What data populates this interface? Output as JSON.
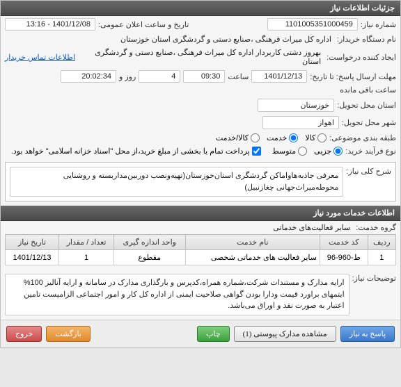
{
  "panels": {
    "details_header": "جزئیات اطلاعات نیاز",
    "services_header": "اطلاعات خدمات مورد نیاز"
  },
  "fields": {
    "need_number_label": "شماره نیاز:",
    "need_number": "1101005351000459",
    "announce_dt_label": "تاریخ و ساعت اعلان عمومی:",
    "announce_dt": "1401/12/08 - 13:16",
    "buyer_org_label": "نام دستگاه خریدار:",
    "buyer_org": "اداره کل میراث فرهنگی ،صنایع دستی و گردشگری استان خوزستان",
    "request_creator_label": "ایجاد کننده درخواست:",
    "request_creator": "بهروز دشتی کاربردار اداره کل میراث فرهنگی ،صنایع دستی و گردشگری استان",
    "buyer_contact_link": "اطلاعات تماس خریدار",
    "deadline_label": "مهلت ارسال پاسخ: تا تاریخ:",
    "deadline_date": "1401/12/13",
    "time_label": "ساعت",
    "deadline_time": "09:30",
    "days": "4",
    "days_label": "روز و",
    "countdown": "20:02:34",
    "remaining_label": "ساعت باقی مانده",
    "province_label": "استان محل تحویل:",
    "province": "خوزستان",
    "city_label": "شهر محل تحویل:",
    "city": "اهواز",
    "subject_cat_label": "طبقه بندی موضوعی:",
    "cat_kala": "کالا",
    "cat_khadamat": "کالا/خدمت",
    "cat_khedmat": "خدمت",
    "purchase_type_label": "نوع فرآیند خرید:",
    "pt_jozi": "جزیی",
    "pt_motavasset": "متوسط",
    "pt_note": "پرداخت تمام یا بخشی از مبلغ خرید،از محل \"اسناد خزانه اسلامی\" خواهد بود.",
    "overview_label": "شرح کلی نیاز:",
    "overview": "معرفی جاذبه‌هاواماکن گردشگری استان‌خوزستان(تهیه‌ونصب دوربین‌مداربسته و روشنایی محوطه‌میراث‌جهانی چغازنبیل)",
    "service_group_label": "گروه خدمت:",
    "service_group": "سایر فعالیت‌های خدماتی",
    "notes_label": "توضیحات نیاز:",
    "notes": "ارایه مدارک و مستندات شرکت،شماره همراه،کدپرس و بارگذاری مدارک در سامانه و ارایه آنالیز 100% ایتمهای براورد قیمت ودارا بودن گواهی صلاحیت ایمنی از اداره کل کار و امور اجتماعی الزامیست تامین اعتبار به صورت نقد و اوراق می‌باشد."
  },
  "table": {
    "cols": [
      "ردیف",
      "کد خدمت",
      "نام خدمت",
      "واحد اندازه گیری",
      "تعداد / مقدار",
      "تاریخ نیاز"
    ],
    "row": [
      "1",
      "ط-960-96",
      "سایر فعالیت های خدماتی شخصی",
      "مقطوع",
      "1",
      "1401/12/13"
    ]
  },
  "buttons": {
    "reply": "پاسخ به نیاز",
    "attachments": "مشاهده مدارک پیوستی (1)",
    "print": "چاپ",
    "back": "بازگشت",
    "exit": "خروج"
  },
  "colors": {
    "header_bg": "#555555",
    "link": "#0a58ca"
  }
}
